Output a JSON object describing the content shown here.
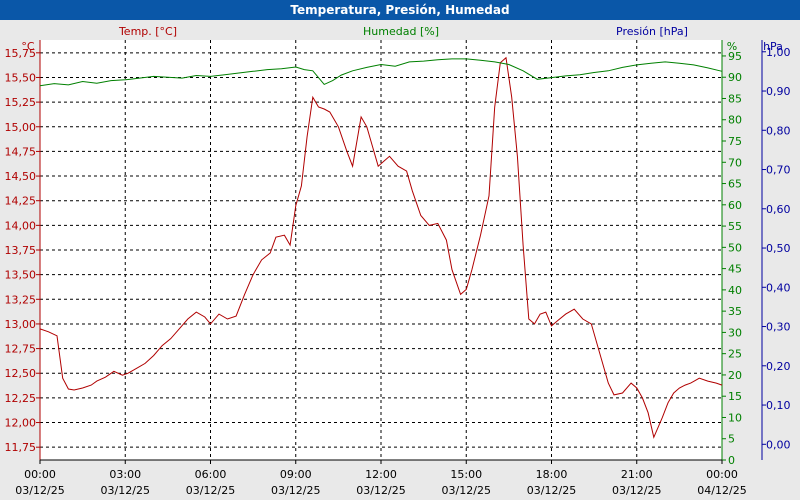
{
  "window": {
    "title": "Temperatura, Presión, Humedad"
  },
  "colors": {
    "temp": "#b00000",
    "hum": "#008000",
    "pres": "#0000a0",
    "grid": "#000000",
    "plot_bg": "#ffffff",
    "page_bg": "#e9e9e9",
    "title_bg": "#0a57a8"
  },
  "chart_data": {
    "type": "line",
    "title": "Temperatura, Presión, Humedad",
    "series_labels": {
      "temp": "Temp. [°C]",
      "hum": "Humedad [%]",
      "pres": "Presión [hPa]"
    },
    "units": {
      "temp": "°C",
      "hum": "%",
      "pres": "hPa"
    },
    "x_tick_times": [
      "00:00",
      "03:00",
      "06:00",
      "09:00",
      "12:00",
      "15:00",
      "18:00",
      "21:00",
      "00:00"
    ],
    "x_tick_dates": [
      "03/12/25",
      "03/12/25",
      "03/12/25",
      "03/12/25",
      "03/12/25",
      "03/12/25",
      "03/12/25",
      "03/12/25",
      "04/12/25"
    ],
    "xlim": [
      "03/12/25 00:00",
      "04/12/25 00:00"
    ],
    "temp_axis": {
      "ticks": [
        "11,75",
        "12,00",
        "12,25",
        "12,50",
        "12,75",
        "13,00",
        "13,25",
        "13,50",
        "13,75",
        "14,00",
        "14,25",
        "14,50",
        "14,75",
        "15,00",
        "15,25",
        "15,50",
        "15,75"
      ],
      "ylim": [
        11.62,
        15.88
      ]
    },
    "hum_axis": {
      "ticks": [
        "0",
        "5",
        "10",
        "15",
        "20",
        "25",
        "30",
        "35",
        "40",
        "45",
        "50",
        "55",
        "60",
        "65",
        "70",
        "75",
        "80",
        "85",
        "90",
        "95"
      ],
      "ylim": [
        0,
        98.75
      ]
    },
    "pres_axis": {
      "ticks": [
        "0,00",
        "0,10",
        "0,20",
        "0,30",
        "0,40",
        "0,50",
        "0,60",
        "0,70",
        "0,80",
        "0,90",
        "1,00"
      ],
      "ylim": [
        -0.04,
        1.03
      ]
    },
    "grid": true,
    "series": [
      {
        "name": "Temp. [°C]",
        "axis": "temp",
        "x_hours": [
          0,
          0.3,
          0.6,
          0.8,
          1.0,
          1.2,
          1.5,
          1.8,
          2.0,
          2.3,
          2.6,
          2.9,
          3.1,
          3.4,
          3.7,
          4.0,
          4.3,
          4.6,
          4.9,
          5.2,
          5.5,
          5.8,
          6.0,
          6.3,
          6.6,
          6.9,
          7.2,
          7.5,
          7.8,
          8.1,
          8.3,
          8.6,
          8.8,
          9.0,
          9.2,
          9.4,
          9.6,
          9.8,
          10.0,
          10.2,
          10.5,
          10.8,
          11.0,
          11.3,
          11.5,
          11.7,
          11.9,
          12.1,
          12.3,
          12.6,
          12.9,
          13.1,
          13.4,
          13.7,
          14.0,
          14.3,
          14.5,
          14.8,
          15.0,
          15.2,
          15.5,
          15.8,
          16.0,
          16.2,
          16.4,
          16.6,
          16.8,
          17.0,
          17.2,
          17.4,
          17.6,
          17.8,
          18.0,
          18.2,
          18.5,
          18.8,
          19.1,
          19.4,
          19.7,
          20.0,
          20.2,
          20.5,
          20.8,
          21.0,
          21.2,
          21.4,
          21.6,
          21.9,
          22.1,
          22.3,
          22.5,
          22.7,
          22.9,
          23.2,
          23.5,
          23.8,
          24.0
        ],
        "values": [
          12.95,
          12.92,
          12.88,
          12.45,
          12.34,
          12.33,
          12.35,
          12.38,
          12.42,
          12.46,
          12.52,
          12.48,
          12.5,
          12.55,
          12.6,
          12.68,
          12.78,
          12.85,
          12.95,
          13.05,
          13.12,
          13.07,
          13.0,
          13.1,
          13.05,
          13.08,
          13.3,
          13.5,
          13.65,
          13.72,
          13.88,
          13.9,
          13.8,
          14.2,
          14.4,
          14.9,
          15.3,
          15.2,
          15.18,
          15.15,
          15.0,
          14.75,
          14.6,
          15.1,
          15.0,
          14.8,
          14.6,
          14.65,
          14.7,
          14.6,
          14.55,
          14.35,
          14.1,
          14.0,
          14.02,
          13.85,
          13.55,
          13.3,
          13.35,
          13.55,
          13.9,
          14.3,
          15.2,
          15.65,
          15.7,
          15.3,
          14.7,
          13.8,
          13.05,
          13.0,
          13.1,
          13.12,
          12.98,
          13.03,
          13.1,
          13.15,
          13.05,
          13.0,
          12.7,
          12.4,
          12.28,
          12.3,
          12.4,
          12.35,
          12.25,
          12.1,
          11.85,
          12.05,
          12.2,
          12.3,
          12.35,
          12.38,
          12.4,
          12.45,
          12.42,
          12.4,
          12.38
        ]
      },
      {
        "name": "Humedad [%]",
        "axis": "hum",
        "x_hours": [
          0,
          0.5,
          1.0,
          1.5,
          2.0,
          2.5,
          3.0,
          3.5,
          4.0,
          4.5,
          5.0,
          5.5,
          6.0,
          6.5,
          7.0,
          7.5,
          8.0,
          8.5,
          9.0,
          9.3,
          9.6,
          10.0,
          10.3,
          10.6,
          11.0,
          11.5,
          12.0,
          12.5,
          13.0,
          13.5,
          14.0,
          14.5,
          15.0,
          15.5,
          16.0,
          16.5,
          17.0,
          17.5,
          18.0,
          18.5,
          19.0,
          19.5,
          20.0,
          20.5,
          21.0,
          21.5,
          22.0,
          22.5,
          23.0,
          23.5,
          24.0
        ],
        "values": [
          88.0,
          88.5,
          88.2,
          89.0,
          88.6,
          89.2,
          89.4,
          89.8,
          90.2,
          90.0,
          89.8,
          90.4,
          90.2,
          90.6,
          91.0,
          91.4,
          91.8,
          92.0,
          92.4,
          91.8,
          91.5,
          88.3,
          89.2,
          90.5,
          91.5,
          92.3,
          93.0,
          92.6,
          93.6,
          93.8,
          94.1,
          94.3,
          94.3,
          94.0,
          93.6,
          93.0,
          91.5,
          89.5,
          89.9,
          90.3,
          90.6,
          91.1,
          91.5,
          92.3,
          92.9,
          93.3,
          93.6,
          93.3,
          92.9,
          92.2,
          91.4
        ]
      }
    ]
  }
}
